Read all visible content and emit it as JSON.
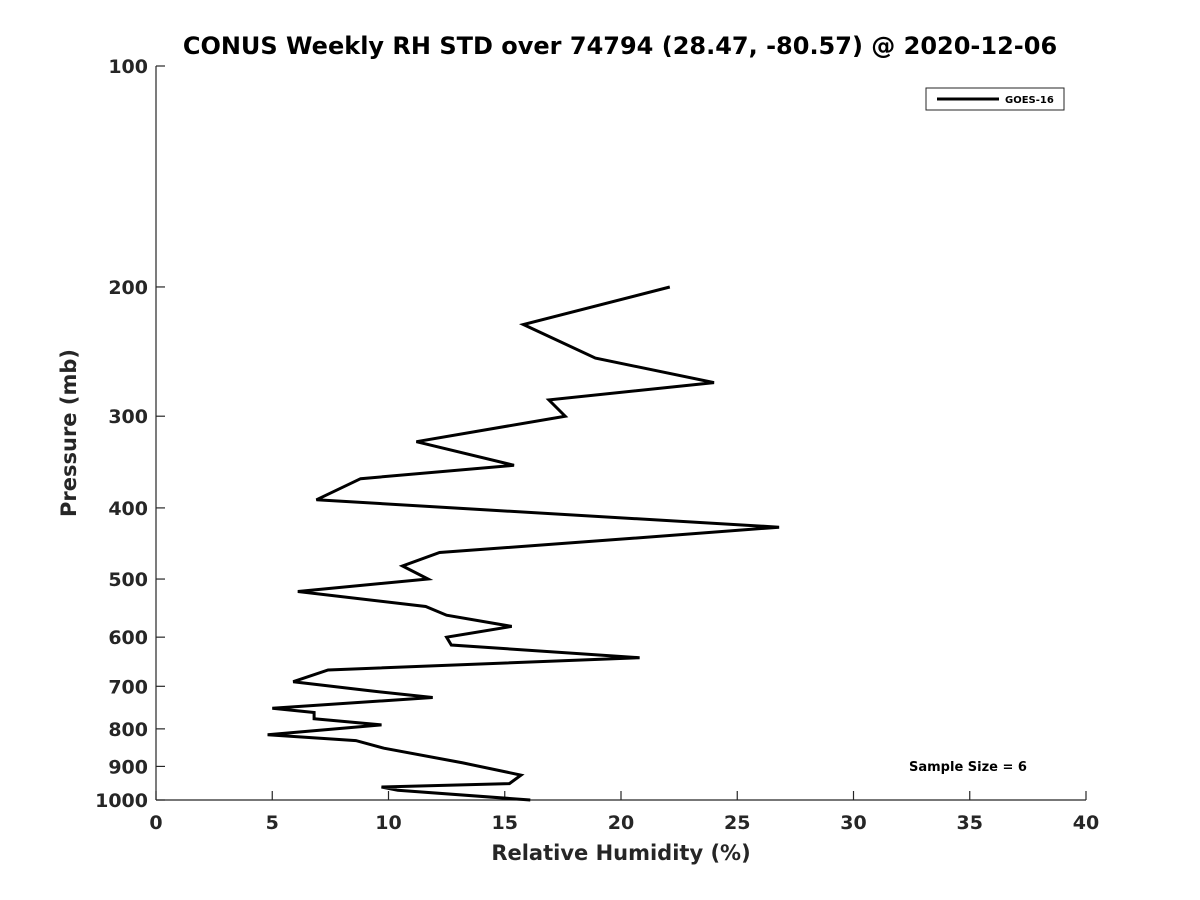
{
  "chart_data": {
    "type": "line",
    "title": "CONUS Weekly RH STD over 74794 (28.47, -80.57) @ 2020-12-06",
    "xlabel": "Relative Humidity (%)",
    "ylabel": "Pressure (mb)",
    "xlim": [
      0,
      40
    ],
    "ylim": [
      100,
      1000
    ],
    "yscale": "log",
    "y_reversed": true,
    "xticks": [
      0,
      5,
      10,
      15,
      20,
      25,
      30,
      35,
      40
    ],
    "yticks": [
      100,
      200,
      300,
      400,
      500,
      600,
      700,
      800,
      900,
      1000
    ],
    "grid": false,
    "legend_position": "top-right",
    "annotation": "Sample Size = 6",
    "series": [
      {
        "name": "GOES-16",
        "color": "#000000",
        "x": [
          22.1,
          15.8,
          18.9,
          24.0,
          16.9,
          17.6,
          11.2,
          15.4,
          8.8,
          6.9,
          26.8,
          20.5,
          12.2,
          10.6,
          11.7,
          6.1,
          11.6,
          12.5,
          15.3,
          12.5,
          12.7,
          20.8,
          7.4,
          5.9,
          9.2,
          11.9,
          5.0,
          6.8,
          6.8,
          9.7,
          4.8,
          8.6,
          9.8,
          13.2,
          15.7,
          15.2,
          9.7,
          10.4,
          16.1
        ],
        "y": [
          200,
          225,
          250,
          270,
          285,
          300,
          325,
          350,
          365,
          390,
          425,
          440,
          460,
          480,
          500,
          520,
          545,
          560,
          580,
          600,
          615,
          640,
          665,
          690,
          710,
          725,
          750,
          760,
          775,
          790,
          815,
          830,
          850,
          890,
          925,
          950,
          960,
          970,
          1000
        ]
      }
    ]
  }
}
